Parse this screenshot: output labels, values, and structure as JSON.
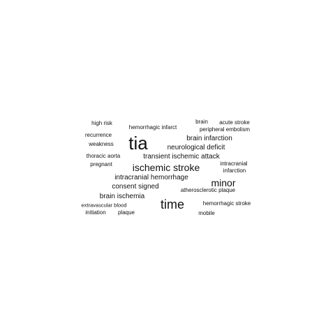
{
  "colors": {
    "background": "#ffffff",
    "text": "#111111"
  },
  "words": [
    {
      "text": "tia",
      "weight": 10
    },
    {
      "text": "time",
      "weight": 7
    },
    {
      "text": "ischemic stroke",
      "weight": 6
    },
    {
      "text": "minor",
      "weight": 6
    },
    {
      "text": "neurological deficit",
      "weight": 4
    },
    {
      "text": "brain infarction",
      "weight": 4
    },
    {
      "text": "transient ischemic attack",
      "weight": 4
    },
    {
      "text": "intracranial hemorrhage",
      "weight": 4
    },
    {
      "text": "consent signed",
      "weight": 4
    },
    {
      "text": "brain ischemia",
      "weight": 4
    },
    {
      "text": "high risk",
      "weight": 2
    },
    {
      "text": "hemorrhagic infarct",
      "weight": 2
    },
    {
      "text": "brain",
      "weight": 2
    },
    {
      "text": "acute stroke",
      "weight": 2
    },
    {
      "text": "peripheral embolism",
      "weight": 2
    },
    {
      "text": "recurrence",
      "weight": 2
    },
    {
      "text": "weakness",
      "weight": 2
    },
    {
      "text": "thoracic aorta",
      "weight": 2
    },
    {
      "text": "pregnant",
      "weight": 2
    },
    {
      "text": "intracranial",
      "weight": 2
    },
    {
      "text": "infarction",
      "weight": 2
    },
    {
      "text": "atherosclerotic plaque",
      "weight": 2
    },
    {
      "text": "extravascular blood",
      "weight": 1
    },
    {
      "text": "initiation",
      "weight": 2
    },
    {
      "text": "plaque",
      "weight": 2
    },
    {
      "text": "hemorrhagic stroke",
      "weight": 2
    },
    {
      "text": "mobile",
      "weight": 2
    }
  ]
}
